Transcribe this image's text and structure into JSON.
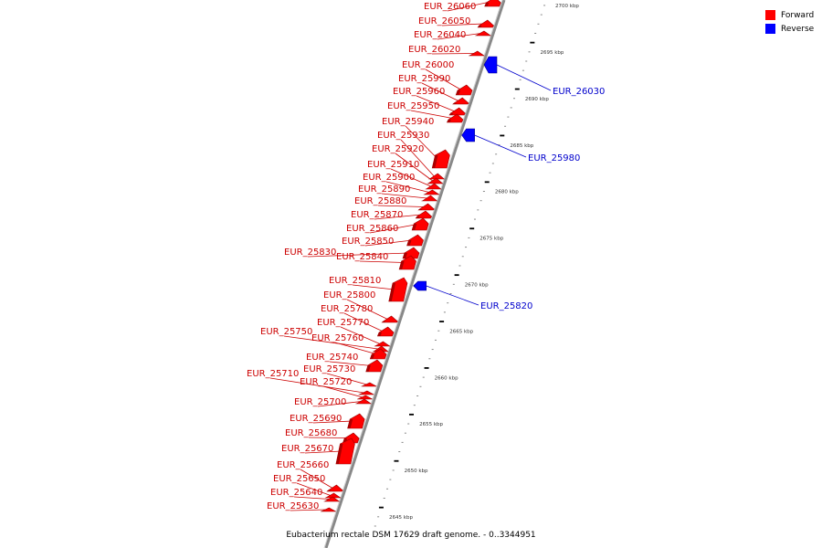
{
  "title": "Eubacterium rectale DSM 17629 draft genome. - 0..3344951",
  "legend": {
    "forward_label": "Forward",
    "reverse_label": "Reverse",
    "forward_color": "#ff0000",
    "reverse_color": "#0000ff"
  },
  "colors": {
    "forward_label": "#cc0000",
    "reverse_label": "#0000cc",
    "backbone": "#888888"
  },
  "ticks": [
    "2645 kbp",
    "2650 kbp",
    "2655 kbp",
    "2660 kbp",
    "2665 kbp",
    "2670 kbp",
    "2675 kbp",
    "2680 kbp",
    "2685 kbp",
    "2690 kbp",
    "2695 kbp",
    "2700 kbp"
  ],
  "forward_genes": [
    {
      "name": "EUR_26060"
    },
    {
      "name": "EUR_26050"
    },
    {
      "name": "EUR_26040"
    },
    {
      "name": "EUR_26020"
    },
    {
      "name": "EUR_26000"
    },
    {
      "name": "EUR_25990"
    },
    {
      "name": "EUR_25960"
    },
    {
      "name": "EUR_25950"
    },
    {
      "name": "EUR_25940"
    },
    {
      "name": "EUR_25930"
    },
    {
      "name": "EUR_25920"
    },
    {
      "name": "EUR_25910"
    },
    {
      "name": "EUR_25900"
    },
    {
      "name": "EUR_25890"
    },
    {
      "name": "EUR_25880"
    },
    {
      "name": "EUR_25870"
    },
    {
      "name": "EUR_25860"
    },
    {
      "name": "EUR_25850"
    },
    {
      "name": "EUR_25830"
    },
    {
      "name": "EUR_25840"
    },
    {
      "name": "EUR_25810"
    },
    {
      "name": "EUR_25800"
    },
    {
      "name": "EUR_25780"
    },
    {
      "name": "EUR_25770"
    },
    {
      "name": "EUR_25750"
    },
    {
      "name": "EUR_25760"
    },
    {
      "name": "EUR_25740"
    },
    {
      "name": "EUR_25730"
    },
    {
      "name": "EUR_25710"
    },
    {
      "name": "EUR_25720"
    },
    {
      "name": "EUR_25700"
    },
    {
      "name": "EUR_25690"
    },
    {
      "name": "EUR_25680"
    },
    {
      "name": "EUR_25670"
    },
    {
      "name": "EUR_25660"
    },
    {
      "name": "EUR_25650"
    },
    {
      "name": "EUR_25640"
    },
    {
      "name": "EUR_25630"
    }
  ],
  "reverse_genes": [
    {
      "name": "EUR_26030"
    },
    {
      "name": "EUR_25980"
    },
    {
      "name": "EUR_25820"
    }
  ]
}
